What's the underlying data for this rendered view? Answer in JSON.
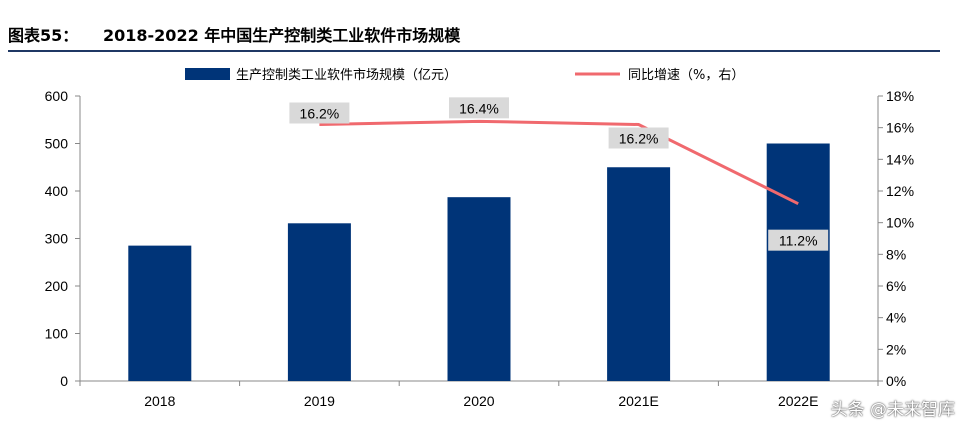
{
  "figure": {
    "number": "图表55：",
    "title": "2018-2022 年中国生产控制类工业软件市场规模"
  },
  "watermark": "头条 @未来智库",
  "chart_data": {
    "type": "bar",
    "categories": [
      "2018",
      "2019",
      "2020",
      "2021E",
      "2022E"
    ],
    "series": [
      {
        "name": "生产控制类工业软件市场规模（亿元）",
        "type": "bar",
        "axis": "left",
        "values": [
          285,
          332,
          387,
          450,
          500
        ],
        "color": "#003478"
      },
      {
        "name": "同比增速（%，右）",
        "type": "line",
        "axis": "right",
        "values": [
          null,
          16.2,
          16.4,
          16.2,
          11.2
        ],
        "labels": [
          null,
          "16.2%",
          "16.4%",
          "16.2%",
          "11.2%"
        ],
        "color": "#f0696e"
      }
    ],
    "left_axis": {
      "min": 0,
      "max": 600,
      "ticks": [
        "0",
        "100",
        "200",
        "300",
        "400",
        "500",
        "600"
      ]
    },
    "right_axis": {
      "min": 0,
      "max": 18,
      "ticks": [
        "0%",
        "2%",
        "4%",
        "6%",
        "8%",
        "10%",
        "12%",
        "14%",
        "16%",
        "18%"
      ]
    },
    "legend_position": "top",
    "grid": false
  }
}
